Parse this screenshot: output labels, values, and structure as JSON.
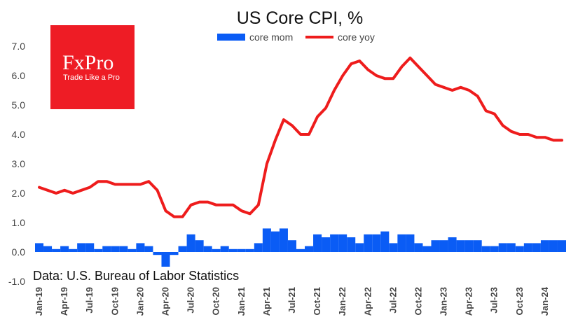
{
  "logo": {
    "brand": "FxPro",
    "tagline": "Trade Like a Pro",
    "color": "#ee1c25"
  },
  "source_note": "Data: U.S. Bureau of Labor Statistics",
  "chart_data": {
    "type": "bar",
    "title": "US Core CPI, %",
    "xlabel": "",
    "ylabel": "",
    "ylim": [
      -1.0,
      7.0
    ],
    "yticks": [
      -1.0,
      0.0,
      1.0,
      2.0,
      3.0,
      4.0,
      5.0,
      6.0,
      7.0
    ],
    "ytick_labels": [
      "-1.0",
      "0.0",
      "1.0",
      "2.0",
      "3.0",
      "4.0",
      "5.0",
      "6.0",
      "7.0"
    ],
    "grid": false,
    "legend_position": "top-center",
    "categories": [
      "Jan-19",
      "Feb-19",
      "Mar-19",
      "Apr-19",
      "May-19",
      "Jun-19",
      "Jul-19",
      "Aug-19",
      "Sep-19",
      "Oct-19",
      "Nov-19",
      "Dec-19",
      "Jan-20",
      "Feb-20",
      "Mar-20",
      "Apr-20",
      "May-20",
      "Jun-20",
      "Jul-20",
      "Aug-20",
      "Sep-20",
      "Oct-20",
      "Nov-20",
      "Dec-20",
      "Jan-21",
      "Feb-21",
      "Mar-21",
      "Apr-21",
      "May-21",
      "Jun-21",
      "Jul-21",
      "Aug-21",
      "Sep-21",
      "Oct-21",
      "Nov-21",
      "Dec-21",
      "Jan-22",
      "Feb-22",
      "Mar-22",
      "Apr-22",
      "May-22",
      "Jun-22",
      "Jul-22",
      "Aug-22",
      "Sep-22",
      "Oct-22",
      "Nov-22",
      "Dec-22",
      "Jan-23",
      "Feb-23",
      "Mar-23",
      "Apr-23",
      "May-23",
      "Jun-23",
      "Jul-23",
      "Aug-23",
      "Sep-23",
      "Oct-23",
      "Nov-23",
      "Dec-23",
      "Jan-24",
      "Feb-24",
      "Mar-24"
    ],
    "xtick_labels": [
      "Jan-19",
      "Apr-19",
      "Jul-19",
      "Oct-19",
      "Jan-20",
      "Apr-20",
      "Jul-20",
      "Oct-20",
      "Jan-21",
      "Apr-21",
      "Jul-21",
      "Oct-21",
      "Jan-22",
      "Apr-22",
      "Jul-22",
      "Oct-22",
      "Jan-23",
      "Apr-23",
      "Jul-23",
      "Oct-23",
      "Jan-24"
    ],
    "series": [
      {
        "name": "core mom",
        "type": "bar",
        "color": "#0a5cf5",
        "values": [
          0.3,
          0.2,
          0.1,
          0.2,
          0.1,
          0.3,
          0.3,
          0.1,
          0.2,
          0.2,
          0.2,
          0.1,
          0.3,
          0.2,
          -0.1,
          -0.5,
          -0.1,
          0.2,
          0.6,
          0.4,
          0.2,
          0.1,
          0.2,
          0.1,
          0.1,
          0.1,
          0.3,
          0.8,
          0.7,
          0.8,
          0.4,
          0.1,
          0.2,
          0.6,
          0.5,
          0.6,
          0.6,
          0.5,
          0.3,
          0.6,
          0.6,
          0.7,
          0.3,
          0.6,
          0.6,
          0.3,
          0.2,
          0.4,
          0.4,
          0.5,
          0.4,
          0.4,
          0.4,
          0.2,
          0.2,
          0.3,
          0.3,
          0.2,
          0.3,
          0.3,
          0.4,
          0.4,
          0.4
        ]
      },
      {
        "name": "core yoy",
        "type": "line",
        "color": "#ee1c1c",
        "values": [
          2.2,
          2.1,
          2.0,
          2.1,
          2.0,
          2.1,
          2.2,
          2.4,
          2.4,
          2.3,
          2.3,
          2.3,
          2.3,
          2.4,
          2.1,
          1.4,
          1.2,
          1.2,
          1.6,
          1.7,
          1.7,
          1.6,
          1.6,
          1.6,
          1.4,
          1.3,
          1.6,
          3.0,
          3.8,
          4.5,
          4.3,
          4.0,
          4.0,
          4.6,
          4.9,
          5.5,
          6.0,
          6.4,
          6.5,
          6.2,
          6.0,
          5.9,
          5.9,
          6.3,
          6.6,
          6.3,
          6.0,
          5.7,
          5.6,
          5.5,
          5.6,
          5.5,
          5.3,
          4.8,
          4.7,
          4.3,
          4.1,
          4.0,
          4.0,
          3.9,
          3.9,
          3.8,
          3.8
        ]
      }
    ]
  }
}
